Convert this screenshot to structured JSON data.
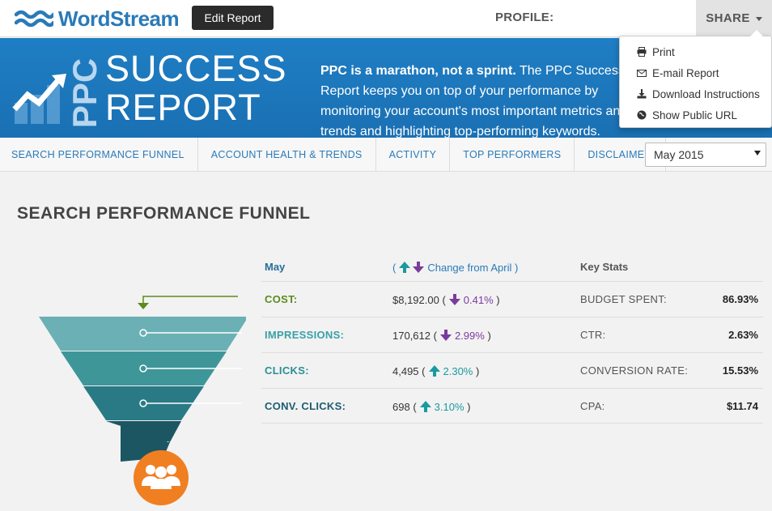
{
  "header": {
    "logo_text": "WordStream",
    "edit_button": "Edit Report",
    "profile_label": "PROFILE:",
    "profile_value": "",
    "share_label": "SHARE"
  },
  "share_menu": {
    "items": [
      {
        "label": "Print",
        "icon": "print-icon"
      },
      {
        "label": "E-mail Report",
        "icon": "envelope-icon"
      },
      {
        "label": "Download Instructions",
        "icon": "download-icon"
      },
      {
        "label": "Show Public URL",
        "icon": "globe-icon"
      }
    ]
  },
  "banner": {
    "ppc": "PPC",
    "success": "SUCCESS",
    "report": "REPORT",
    "tagline_bold": "PPC is a marathon, not a sprint.",
    "tagline_rest": " The PPC Success Report keeps you on top of your performance by monitoring your account's most important metrics and trends and highlighting top-performing keywords."
  },
  "nav": {
    "tabs": [
      "SEARCH PERFORMANCE FUNNEL",
      "ACCOUNT HEALTH & TRENDS",
      "ACTIVITY",
      "TOP PERFORMERS",
      "DISCLAIMER"
    ],
    "month_selected": "May 2015"
  },
  "section": {
    "title": "SEARCH PERFORMANCE FUNNEL"
  },
  "table": {
    "col_month": "May",
    "col_change_open": "(",
    "col_change": "Change from April",
    "col_change_close": ")",
    "col_stats": "Key Stats",
    "rows": [
      {
        "metric": "COST:",
        "value": "$8,192.00",
        "dir": "down",
        "change": "0.41%",
        "stat_label": "BUDGET SPENT:",
        "stat_value": "86.93%",
        "color": "#5c8a1e"
      },
      {
        "metric": "IMPRESSIONS:",
        "value": "170,612",
        "dir": "down",
        "change": "2.99%",
        "stat_label": "CTR:",
        "stat_value": "2.63%",
        "color": "#3aa0a6"
      },
      {
        "metric": "CLICKS:",
        "value": "4,495",
        "dir": "up",
        "change": "2.30%",
        "stat_label": "CONVERSION RATE:",
        "stat_value": "15.53%",
        "color": "#2a8f96"
      },
      {
        "metric": "CONV. CLICKS:",
        "value": "698",
        "dir": "up",
        "change": "3.10%",
        "stat_label": "CPA:",
        "stat_value": "$11.74",
        "color": "#1d5d70"
      }
    ]
  },
  "colors": {
    "brand_blue": "#2a7ab8",
    "down_purple": "#7a3c9c",
    "up_teal": "#1a9aa0",
    "funnel_orange": "#f07f22"
  }
}
